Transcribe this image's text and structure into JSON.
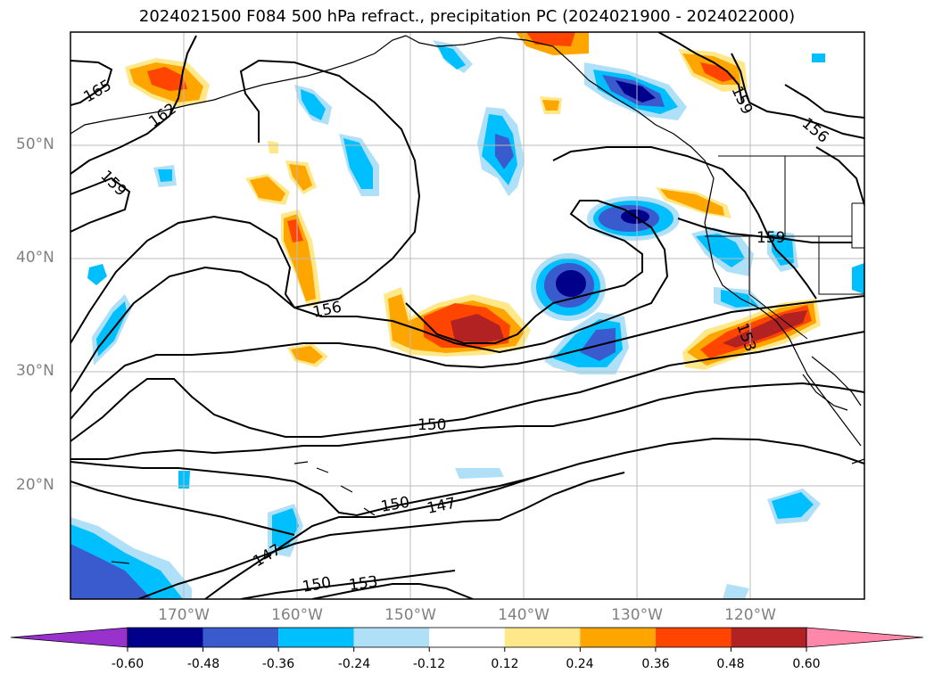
{
  "title": "2024021500 F084 500 hPa refract., precipitation PC (2024021900 - 2024022000)",
  "lat_labels": [
    "50°N",
    "40°N",
    "30°N",
    "20°N"
  ],
  "lon_labels": [
    "170°W",
    "160°W",
    "150°W",
    "140°W",
    "130°W",
    "120°W"
  ],
  "contour_labels": [
    "165",
    "162",
    "159",
    "159",
    "159",
    "156",
    "156",
    "153",
    "150",
    "150",
    "147",
    "147",
    "150",
    "153"
  ],
  "colorbar": {
    "ticks": [
      "-0.60",
      "-0.48",
      "-0.36",
      "-0.24",
      "-0.12",
      "0.12",
      "0.24",
      "0.36",
      "0.48",
      "0.60"
    ],
    "colors": [
      "#9932cc",
      "#00008b",
      "#3a5bcd",
      "#00bfff",
      "#b0e0f8",
      "#ffffff",
      "#ffe88a",
      "#ffa500",
      "#ff4500",
      "#b22222",
      "#ff88aa"
    ]
  },
  "colors": {
    "deep_blue": "#00008b",
    "mid_blue": "#3a5bcd",
    "sky_blue": "#00bfff",
    "light_blue": "#b0e0f8",
    "yellow": "#ffe88a",
    "orange": "#ffa500",
    "orangered": "#ff4500",
    "dark_red": "#b22222"
  }
}
